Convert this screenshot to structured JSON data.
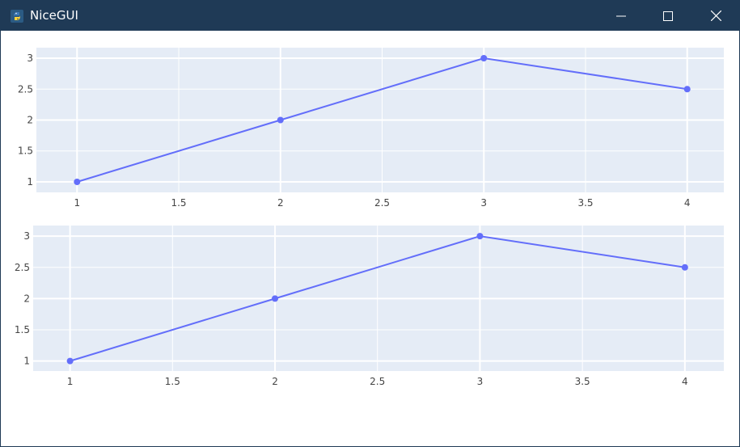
{
  "window": {
    "title": "NiceGUI",
    "titlebar_color": "#1f3a56"
  },
  "icons": {
    "app": "python-logo-icon",
    "minimize": "minimize-icon",
    "maximize": "maximize-icon",
    "close": "close-icon"
  },
  "colors": {
    "plot_bg": "#e5ecf6",
    "grid": "#ffffff",
    "line": "#636efa",
    "tick_text": "#444444"
  },
  "chart_data": [
    {
      "type": "line",
      "title": "",
      "xlabel": "",
      "ylabel": "",
      "x": [
        1,
        2,
        3,
        4
      ],
      "series": [
        {
          "values": [
            1,
            2,
            3,
            2.5
          ]
        }
      ],
      "xlim": [
        0.8,
        4.18
      ],
      "ylim": [
        0.83,
        3.17
      ],
      "x_ticks": [
        1,
        1.5,
        2,
        2.5,
        3,
        3.5,
        4
      ],
      "x_tick_labels": [
        "1",
        "1.5",
        "2",
        "2.5",
        "3",
        "3.5",
        "4"
      ],
      "y_ticks": [
        1,
        1.5,
        2,
        2.5,
        3
      ],
      "y_tick_labels": [
        "1",
        "1.5",
        "2",
        "2.5",
        "3"
      ],
      "grid": true,
      "legend": "none"
    },
    {
      "type": "line",
      "title": "",
      "xlabel": "",
      "ylabel": "",
      "x": [
        1,
        2,
        3,
        4
      ],
      "series": [
        {
          "values": [
            1,
            2,
            3,
            2.5
          ]
        }
      ],
      "xlim": [
        0.82,
        4.19
      ],
      "ylim": [
        0.84,
        3.17
      ],
      "x_ticks": [
        1,
        1.5,
        2,
        2.5,
        3,
        3.5,
        4
      ],
      "x_tick_labels": [
        "1",
        "1.5",
        "2",
        "2.5",
        "3",
        "3.5",
        "4"
      ],
      "y_ticks": [
        1,
        1.5,
        2,
        2.5,
        3
      ],
      "y_tick_labels": [
        "1",
        "1.5",
        "2",
        "2.5",
        "3"
      ],
      "grid": true,
      "legend": "none"
    }
  ]
}
